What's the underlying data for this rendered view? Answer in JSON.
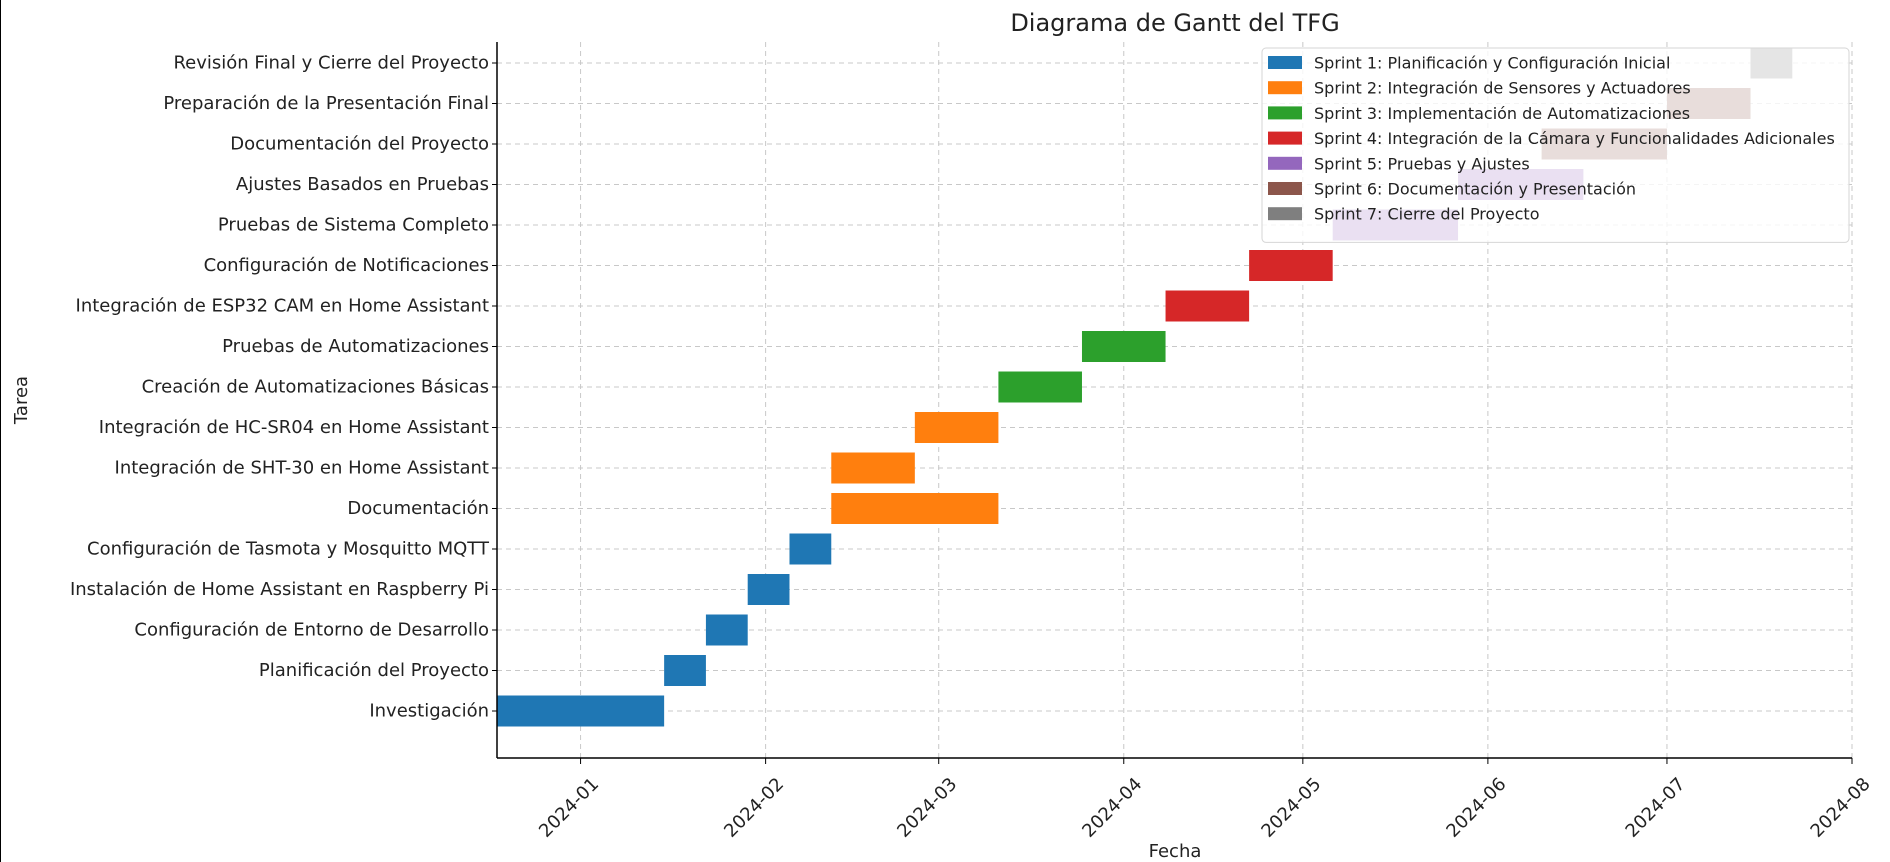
{
  "chart_data": {
    "type": "gantt",
    "title": "Diagrama de Gantt del TFG",
    "xlabel": "Fecha",
    "ylabel": "Tarea",
    "grid": true,
    "legend_position": "top-right",
    "xlim": [
      "2023-12-18",
      "2024-08-01"
    ],
    "x_ticks": [
      "2024-01",
      "2024-02",
      "2024-03",
      "2024-04",
      "2024-05",
      "2024-06",
      "2024-07",
      "2024-08"
    ],
    "x_tick_dates": [
      "2024-01-01",
      "2024-02-01",
      "2024-03-01",
      "2024-04-01",
      "2024-05-01",
      "2024-06-01",
      "2024-07-01",
      "2024-08-01"
    ],
    "series": [
      {
        "name": "Sprint 1: Planificación y Configuración Inicial",
        "color": "#1f77b4"
      },
      {
        "name": "Sprint 2: Integración de Sensores y Actuadores",
        "color": "#ff7f0e"
      },
      {
        "name": "Sprint 3: Implementación de Automatizaciones",
        "color": "#2ca02c"
      },
      {
        "name": "Sprint 4: Integración de la Cámara y Funcionalidades Adicionales",
        "color": "#d62728"
      },
      {
        "name": "Sprint 5: Pruebas y Ajustes",
        "color": "#9467bd"
      },
      {
        "name": "Sprint 6: Documentación y Presentación",
        "color": "#8c564b"
      },
      {
        "name": "Sprint 7: Cierre del Proyecto",
        "color": "#7f7f7f"
      }
    ],
    "tasks": [
      {
        "label": "Investigación",
        "start": "2023-12-18",
        "end": "2024-01-15",
        "sprint": 0
      },
      {
        "label": "Planificación del Proyecto",
        "start": "2024-01-15",
        "end": "2024-01-22",
        "sprint": 0
      },
      {
        "label": "Configuración de Entorno de Desarrollo",
        "start": "2024-01-22",
        "end": "2024-01-29",
        "sprint": 0
      },
      {
        "label": "Instalación de Home Assistant en Raspberry Pi",
        "start": "2024-01-29",
        "end": "2024-02-05",
        "sprint": 0
      },
      {
        "label": "Configuración de Tasmota y Mosquitto MQTT",
        "start": "2024-02-05",
        "end": "2024-02-12",
        "sprint": 0
      },
      {
        "label": "Documentación",
        "start": "2024-02-12",
        "end": "2024-03-11",
        "sprint": 1
      },
      {
        "label": "Integración de SHT-30 en Home Assistant",
        "start": "2024-02-12",
        "end": "2024-02-26",
        "sprint": 1
      },
      {
        "label": "Integración de HC-SR04 en Home Assistant",
        "start": "2024-02-26",
        "end": "2024-03-11",
        "sprint": 1
      },
      {
        "label": "Creación de Automatizaciones Básicas",
        "start": "2024-03-11",
        "end": "2024-03-25",
        "sprint": 2
      },
      {
        "label": "Pruebas de Automatizaciones",
        "start": "2024-03-25",
        "end": "2024-04-08",
        "sprint": 2
      },
      {
        "label": "Integración de ESP32 CAM en Home Assistant",
        "start": "2024-04-08",
        "end": "2024-04-22",
        "sprint": 3
      },
      {
        "label": "Configuración de Notificaciones",
        "start": "2024-04-22",
        "end": "2024-05-06",
        "sprint": 3
      },
      {
        "label": "Pruebas de Sistema Completo",
        "start": "2024-05-06",
        "end": "2024-05-27",
        "sprint": 4
      },
      {
        "label": "Ajustes Basados en Pruebas",
        "start": "2024-05-27",
        "end": "2024-06-17",
        "sprint": 4
      },
      {
        "label": "Documentación del Proyecto",
        "start": "2024-06-10",
        "end": "2024-07-01",
        "sprint": 5
      },
      {
        "label": "Preparación de la Presentación Final",
        "start": "2024-07-01",
        "end": "2024-07-15",
        "sprint": 5
      },
      {
        "label": "Revisión Final y Cierre del Proyecto",
        "start": "2024-07-15",
        "end": "2024-07-22",
        "sprint": 6
      }
    ]
  }
}
